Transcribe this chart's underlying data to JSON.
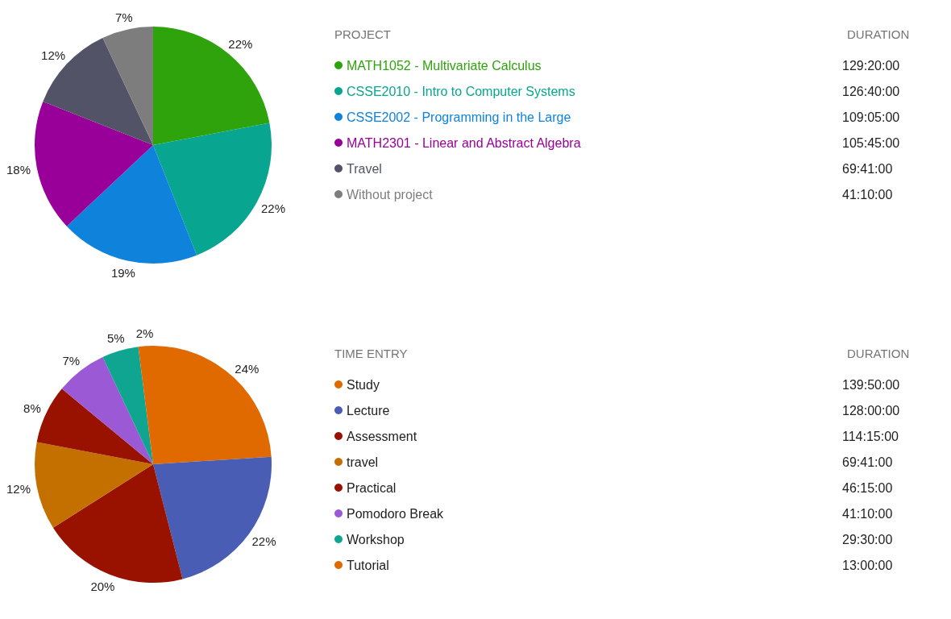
{
  "chart_data": [
    {
      "type": "pie",
      "legend_title": "PROJECT",
      "annotations": [
        "DURATION",
        "129:20:00",
        "126:40:00",
        "109:05:00",
        "105:45:00",
        "69:41:00",
        "41:10:00"
      ],
      "categories": [
        "MATH1052 - Multivariate Calculus",
        "CSSE2010 - Intro to Computer Systems",
        "CSSE2002 - Programming in the Large",
        "MATH2301 - Linear and Abstract Algebra",
        "Travel",
        "Without project"
      ],
      "values": [
        22,
        22,
        19,
        18,
        12,
        7
      ],
      "colors": [
        "#2ea30c",
        "#08a690",
        "#0f83db",
        "#990099",
        "#525366",
        "#7d7d7d"
      ],
      "value_labels": [
        "22%",
        "22%",
        "19%",
        "18%",
        "12%",
        "7%"
      ],
      "legend": "right"
    },
    {
      "type": "pie",
      "legend_title": "TIME ENTRY",
      "annotations": [
        "DURATION",
        "139:50:00",
        "128:00:00",
        "114:15:00",
        "69:41:00",
        "46:15:00",
        "41:10:00",
        "29:30:00",
        "13:00:00"
      ],
      "categories": [
        "Study",
        "Lecture",
        "Assessment",
        "travel",
        "Practical",
        "Pomodoro Break",
        "Workshop",
        "Tutorial"
      ],
      "values": [
        24,
        22,
        20,
        12,
        8,
        7,
        5,
        2
      ],
      "colors": [
        "#e06a00",
        "#4a5db5",
        "#991200",
        "#c47000",
        "#991200",
        "#9b59d6",
        "#10a590",
        "#e06a00"
      ],
      "value_labels": [
        "24%",
        "22%",
        "20%",
        "12%",
        "8%",
        "7%",
        "5%",
        "2%"
      ],
      "legend": "right"
    }
  ]
}
